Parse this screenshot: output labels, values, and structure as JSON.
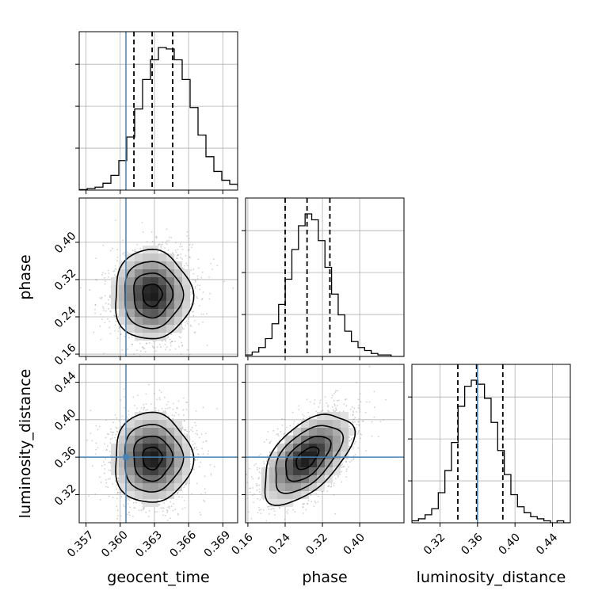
{
  "chart_data": {
    "type": "corner",
    "parameters": [
      "geocent_time",
      "phase",
      "luminosity_distance"
    ],
    "axis_labels": {
      "geocent_time": "geocent_time",
      "phase": "phase",
      "luminosity_distance": "luminosity_distance"
    },
    "truth": {
      "geocent_time": 0.3605,
      "phase": null,
      "luminosity_distance": 0.36
    },
    "quantiles": {
      "geocent_time": [
        0.3612,
        0.3628,
        0.3646
      ],
      "phase": [
        0.24,
        0.287,
        0.336
      ],
      "luminosity_distance": [
        0.339,
        0.359,
        0.387
      ]
    },
    "ranges": {
      "geocent_time": [
        0.3564,
        0.3703
      ],
      "phase": [
        0.155,
        0.495
      ],
      "luminosity_distance": [
        0.29,
        0.459
      ]
    },
    "ticks": {
      "geocent_time": [
        0.357,
        0.36,
        0.363,
        0.366,
        0.369
      ],
      "phase": [
        0.16,
        0.24,
        0.32,
        0.4
      ],
      "luminosity_distance": [
        0.32,
        0.36,
        0.4,
        0.44
      ]
    },
    "tick_labels": {
      "geocent_time": [
        "0.357",
        "0.360",
        "0.363",
        "0.366",
        "0.369"
      ],
      "phase": [
        "0.16",
        "0.24",
        "0.32",
        "0.40"
      ],
      "luminosity_distance": [
        "0.32",
        "0.36",
        "0.40",
        "0.44"
      ]
    },
    "histograms": {
      "geocent_time": {
        "bins_start": 0.3564,
        "bin_width": 0.000695,
        "counts": [
          1,
          3,
          6,
          14,
          30,
          60,
          108,
          165,
          225,
          265,
          290,
          287,
          265,
          225,
          168,
          112,
          68,
          38,
          20,
          12,
          8,
          4,
          2,
          1
        ]
      },
      "phase": {
        "bins_start": 0.155,
        "bin_width": 0.0142,
        "counts": [
          1,
          3,
          6,
          12,
          22,
          35,
          52,
          72,
          88,
          96,
          92,
          78,
          60,
          42,
          28,
          17,
          10,
          6,
          4,
          2,
          1,
          1,
          0,
          0
        ]
      },
      "luminosity_distance": {
        "bins_start": 0.29,
        "bin_width": 0.00704,
        "counts": [
          1,
          2,
          4,
          7,
          15,
          26,
          40,
          58,
          68,
          71,
          69,
          62,
          50,
          36,
          24,
          14,
          8,
          5,
          3,
          2,
          1,
          0,
          1,
          0
        ]
      }
    },
    "correlations": {
      "phase|geocent_time": 0.0,
      "luminosity_distance|geocent_time": 0.0,
      "luminosity_distance|phase": 0.55
    },
    "grid": true,
    "truth_color": "#4682b4",
    "contour_color": "#000000"
  }
}
